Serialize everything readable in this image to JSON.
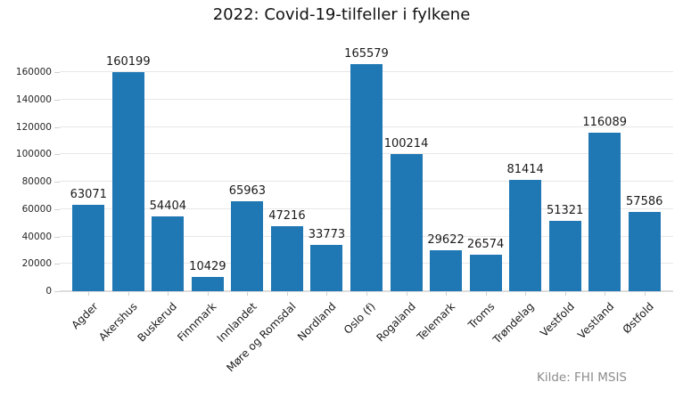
{
  "chart_data": {
    "type": "bar",
    "title": "2022: Covid-19-tilfeller i fylkene",
    "categories": [
      "Agder",
      "Akershus",
      "Buskerud",
      "Finnmark",
      "Innlandet",
      "Møre og Romsdal",
      "Nordland",
      "Oslo (f)",
      "Rogaland",
      "Telemark",
      "Troms",
      "Trøndelag",
      "Vestfold",
      "Vestland",
      "Østfold"
    ],
    "values": [
      63071,
      160199,
      54404,
      10429,
      65963,
      47216,
      33773,
      165579,
      100214,
      29622,
      26574,
      81414,
      51321,
      116089,
      57586
    ],
    "value_labels": [
      "63071",
      "160199",
      "54404",
      "10429",
      "65963",
      "47216",
      "33773",
      "165579",
      "100214",
      "29622",
      "26574",
      "81414",
      "51321",
      "116089",
      "57586"
    ],
    "xlabel": "",
    "ylabel": "",
    "ylim": [
      0,
      182000
    ],
    "yticks": [
      0,
      20000,
      40000,
      60000,
      80000,
      100000,
      120000,
      140000,
      160000
    ],
    "grid": true,
    "legend": false,
    "bar_color": "#1f77b4",
    "source": "Kilde: FHI MSIS"
  }
}
